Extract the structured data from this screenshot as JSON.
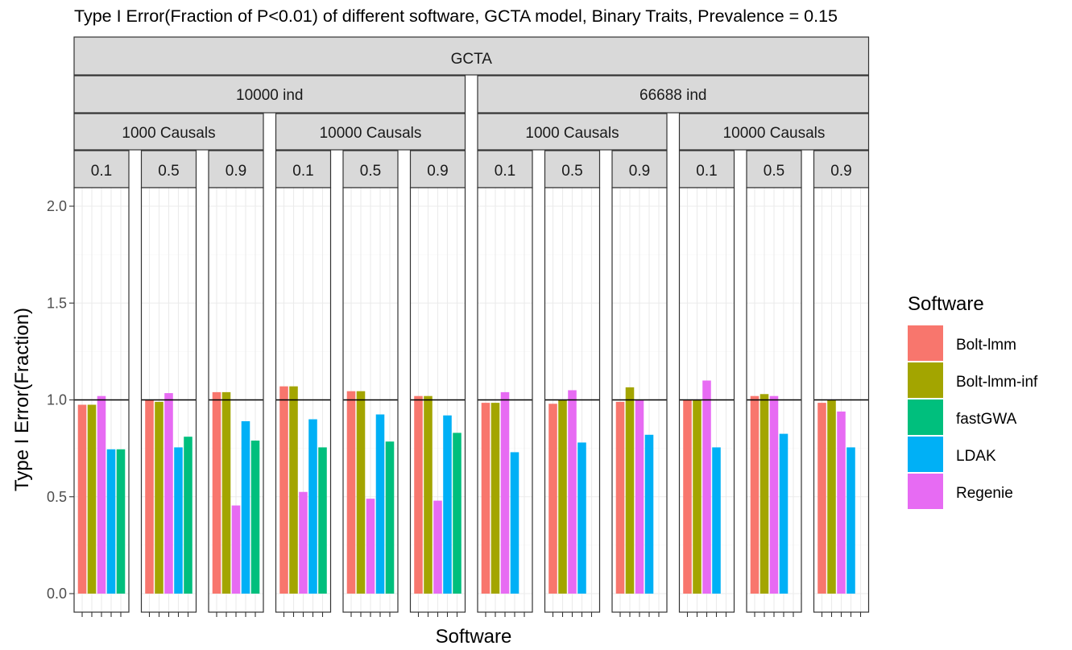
{
  "chart_data": {
    "type": "bar",
    "title": "Type I Error(Fraction of P<0.01) of different software, GCTA model, Binary Traits, Prevalence = 0.15",
    "xlabel": "Software",
    "ylabel": "Type I Error(Fraction)",
    "ylim": [
      0,
      2.0
    ],
    "yticks": [
      "0.0",
      "0.5",
      "1.0",
      "1.5",
      "2.0"
    ],
    "reference_line": 1.0,
    "grid": true,
    "legend_position": "right",
    "legend": {
      "title": "Software",
      "items": [
        {
          "name": "Bolt-lmm",
          "color": "#F8766D"
        },
        {
          "name": "Bolt-lmm-inf",
          "color": "#A3A500"
        },
        {
          "name": "fastGWA",
          "color": "#00BF7D"
        },
        {
          "name": "LDAK",
          "color": "#00B0F6"
        },
        {
          "name": "Regenie",
          "color": "#E76BF3"
        }
      ]
    },
    "facet_top": "GCTA",
    "groups": [
      {
        "label": "10000 ind",
        "causals": [
          {
            "label": "1000 Causals",
            "panels": [
              {
                "label": "0.1",
                "values": {
                  "Bolt-lmm": 0.975,
                  "Bolt-lmm-inf": 0.975,
                  "Regenie": 1.02,
                  "LDAK": 0.745,
                  "fastGWA": 0.745
                }
              },
              {
                "label": "0.5",
                "values": {
                  "Bolt-lmm": 1.0,
                  "Bolt-lmm-inf": 0.99,
                  "Regenie": 1.035,
                  "LDAK": 0.755,
                  "fastGWA": 0.81
                }
              },
              {
                "label": "0.9",
                "values": {
                  "Bolt-lmm": 1.04,
                  "Bolt-lmm-inf": 1.04,
                  "Regenie": 0.455,
                  "LDAK": 0.89,
                  "fastGWA": 0.79
                }
              }
            ]
          },
          {
            "label": "10000 Causals",
            "panels": [
              {
                "label": "0.1",
                "values": {
                  "Bolt-lmm": 1.07,
                  "Bolt-lmm-inf": 1.07,
                  "Regenie": 0.525,
                  "LDAK": 0.9,
                  "fastGWA": 0.755
                }
              },
              {
                "label": "0.5",
                "values": {
                  "Bolt-lmm": 1.045,
                  "Bolt-lmm-inf": 1.045,
                  "Regenie": 0.49,
                  "LDAK": 0.925,
                  "fastGWA": 0.785
                }
              },
              {
                "label": "0.9",
                "values": {
                  "Bolt-lmm": 1.02,
                  "Bolt-lmm-inf": 1.02,
                  "Regenie": 0.48,
                  "LDAK": 0.92,
                  "fastGWA": 0.83
                }
              }
            ]
          }
        ]
      },
      {
        "label": "66688 ind",
        "causals": [
          {
            "label": "1000 Causals",
            "panels": [
              {
                "label": "0.1",
                "values": {
                  "Bolt-lmm": 0.985,
                  "Bolt-lmm-inf": 0.985,
                  "Regenie": 1.04,
                  "LDAK": 0.73,
                  "fastGWA": null
                }
              },
              {
                "label": "0.5",
                "values": {
                  "Bolt-lmm": 0.98,
                  "Bolt-lmm-inf": 1.0,
                  "Regenie": 1.05,
                  "LDAK": 0.78,
                  "fastGWA": null
                }
              },
              {
                "label": "0.9",
                "values": {
                  "Bolt-lmm": 0.99,
                  "Bolt-lmm-inf": 1.065,
                  "Regenie": 1.0,
                  "LDAK": 0.82,
                  "fastGWA": null
                }
              }
            ]
          },
          {
            "label": "10000 Causals",
            "panels": [
              {
                "label": "0.1",
                "values": {
                  "Bolt-lmm": 1.0,
                  "Bolt-lmm-inf": 1.0,
                  "Regenie": 1.1,
                  "LDAK": 0.755,
                  "fastGWA": null
                }
              },
              {
                "label": "0.5",
                "values": {
                  "Bolt-lmm": 1.02,
                  "Bolt-lmm-inf": 1.03,
                  "Regenie": 1.02,
                  "LDAK": 0.825,
                  "fastGWA": null
                }
              },
              {
                "label": "0.9",
                "values": {
                  "Bolt-lmm": 0.985,
                  "Bolt-lmm-inf": 1.0,
                  "Regenie": 0.94,
                  "LDAK": 0.755,
                  "fastGWA": null
                }
              }
            ]
          }
        ]
      }
    ],
    "x_categories_order": [
      "Bolt-lmm",
      "Bolt-lmm-inf",
      "Regenie",
      "LDAK",
      "fastGWA"
    ]
  }
}
